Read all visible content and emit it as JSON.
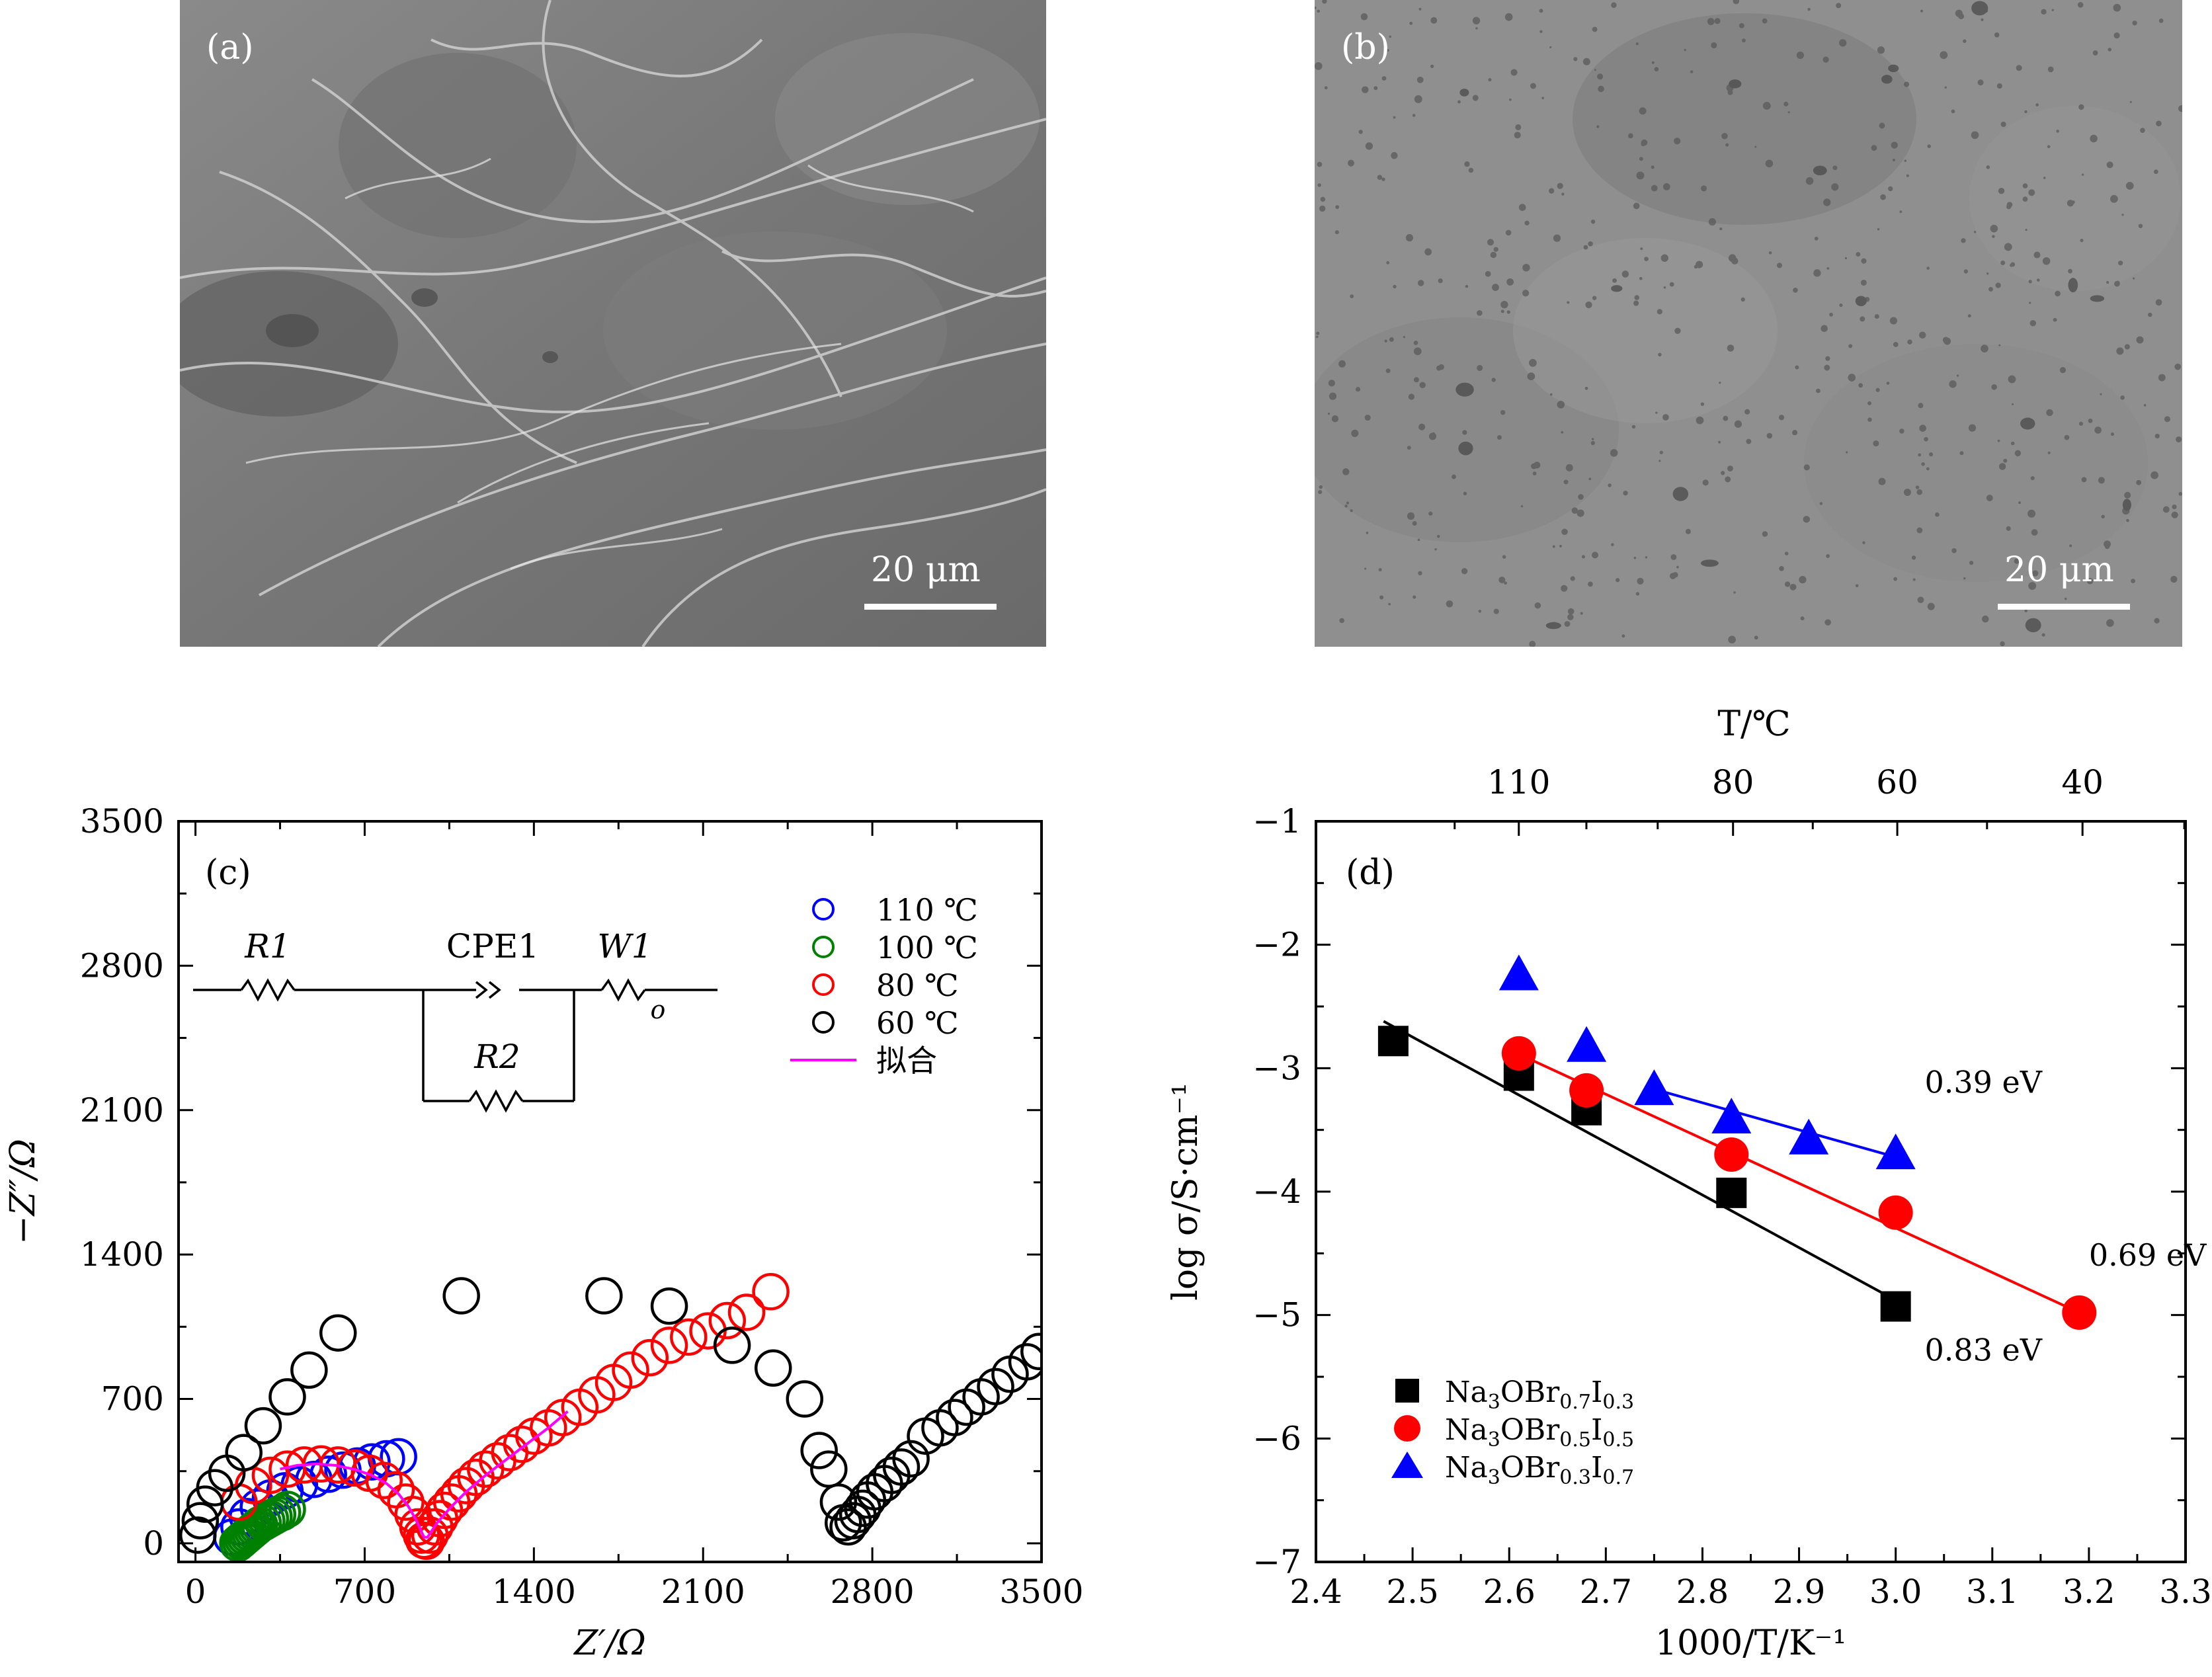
{
  "micrographs": [
    {
      "label": "(a)",
      "scale_text": "20 μm",
      "texture": "wrinkled-fibrous-sem"
    },
    {
      "label": "(b)",
      "scale_text": "20 μm",
      "texture": "dense-smooth-porous-sem"
    }
  ],
  "colors": {
    "blue": "#0000ff",
    "green": "#008000",
    "red": "#ff0000",
    "black": "#000000",
    "magenta": "#ff00ff"
  },
  "chart_data": [
    {
      "type": "scatter",
      "panel_label": "(c)",
      "xlabel": "Z′/Ω",
      "ylabel": "−Z″/Ω",
      "xlim": [
        -70,
        3500
      ],
      "ylim": [
        -90,
        3500
      ],
      "xticks": [
        0,
        700,
        1400,
        2100,
        2800,
        3500
      ],
      "yticks": [
        0,
        700,
        1400,
        2100,
        2800,
        3500
      ],
      "circuit": {
        "r1": "R1",
        "cpe1": "CPE1",
        "w1": "W1",
        "w1_sub": "o",
        "r2": "R2"
      },
      "legend": [
        "110 ℃",
        "100 ℃",
        "80 ℃",
        "60 ℃",
        "拟合"
      ],
      "series": [
        {
          "name": "110 ℃",
          "color": "#0000ff",
          "x": [
            150,
            180,
            215,
            260,
            310,
            370,
            430,
            490,
            550,
            610,
            670,
            730,
            790,
            840
          ],
          "y": [
            30,
            80,
            130,
            175,
            220,
            255,
            285,
            310,
            335,
            355,
            375,
            395,
            410,
            420
          ]
        },
        {
          "name": "100 ℃",
          "color": "#008000",
          "x": [
            175,
            185,
            195,
            205,
            215,
            225,
            235,
            245,
            255,
            265,
            280,
            295,
            310,
            325,
            340,
            360,
            380
          ],
          "y": [
            0,
            10,
            20,
            30,
            40,
            50,
            60,
            70,
            80,
            90,
            100,
            110,
            120,
            130,
            140,
            150,
            165
          ]
        },
        {
          "name": "80 ℃",
          "color": "#ff0000",
          "x": [
            180,
            240,
            310,
            380,
            450,
            520,
            590,
            660,
            720,
            780,
            830,
            870,
            900,
            920,
            935,
            945,
            955,
            970,
            990,
            1010,
            1030,
            1060,
            1090,
            1120,
            1160,
            1200,
            1250,
            1300,
            1350,
            1400,
            1460,
            1520,
            1590,
            1660,
            1730,
            1800,
            1880,
            1960,
            2040,
            2120,
            2200,
            2280,
            2380
          ],
          "y": [
            200,
            280,
            330,
            360,
            380,
            385,
            380,
            365,
            340,
            305,
            260,
            200,
            140,
            80,
            40,
            15,
            10,
            40,
            80,
            120,
            160,
            200,
            240,
            280,
            320,
            360,
            400,
            440,
            480,
            520,
            560,
            610,
            660,
            720,
            780,
            840,
            900,
            960,
            1000,
            1030,
            1080,
            1120,
            1220
          ]
        },
        {
          "name": "60 ℃",
          "color": "#000000",
          "x": [
            10,
            20,
            40,
            80,
            130,
            200,
            280,
            380,
            470,
            590,
            1100,
            1690,
            1960,
            2220,
            2390,
            2520,
            2580,
            2620,
            2660,
            2680,
            2700,
            2720,
            2740,
            2760,
            2780,
            2810,
            2850,
            2880,
            2920,
            2960,
            3020,
            3080,
            3140,
            3190,
            3250,
            3310,
            3370,
            3440,
            3490
          ],
          "y": [
            40,
            110,
            190,
            270,
            340,
            440,
            570,
            710,
            840,
            1020,
            1200,
            1200,
            1150,
            960,
            850,
            700,
            450,
            360,
            200,
            100,
            80,
            110,
            140,
            170,
            210,
            250,
            290,
            330,
            370,
            410,
            520,
            560,
            610,
            660,
            710,
            760,
            820,
            880,
            930
          ]
        }
      ],
      "fit_color": "#ff00ff",
      "fit_curve": {
        "x": [
          350,
          420,
          500,
          580,
          660,
          730,
          790,
          840,
          880,
          910,
          930,
          945,
          960,
          1000,
          1060,
          1120,
          1200,
          1290,
          1380,
          1460,
          1540
        ],
        "y": [
          360,
          378,
          385,
          378,
          358,
          330,
          290,
          240,
          180,
          120,
          70,
          30,
          30,
          100,
          180,
          250,
          330,
          410,
          490,
          560,
          640
        ]
      }
    },
    {
      "type": "scatter",
      "panel_label": "(d)",
      "xlabel": "1000/T/K⁻¹",
      "ylabel": "log σ/S·cm⁻¹",
      "top_xlabel": "T/℃",
      "xlim": [
        2.4,
        3.3
      ],
      "ylim": [
        -7,
        -1
      ],
      "xticks": [
        2.4,
        2.5,
        2.6,
        2.7,
        2.8,
        2.9,
        3.0,
        3.1,
        3.2,
        3.3
      ],
      "yticks": [
        -1,
        -2,
        -3,
        -4,
        -5,
        -6,
        -7
      ],
      "top_ticks": [
        110,
        80,
        60,
        40
      ],
      "series": [
        {
          "name": "Na3OBr0.7I0.3",
          "name_main": "Na",
          "name_parts": [
            "3",
            "OBr",
            "0.7",
            "I",
            "0.3"
          ],
          "color": "#000000",
          "marker": "square",
          "x": [
            2.48,
            2.61,
            2.68,
            2.83,
            3.0
          ],
          "y": [
            -2.78,
            -3.06,
            -3.34,
            -4.01,
            -4.93
          ],
          "fit": {
            "x": [
              2.47,
              3.0
            ],
            "y": [
              -2.62,
              -4.88
            ]
          },
          "annotation": "0.83 eV",
          "ann_pos": [
            3.03,
            -5.37
          ]
        },
        {
          "name": "Na3OBr0.5I0.5",
          "name_main": "Na",
          "name_parts": [
            "3",
            "OBr",
            "0.5",
            "I",
            "0.5"
          ],
          "color": "#ff0000",
          "marker": "circle",
          "x": [
            2.61,
            2.68,
            2.83,
            3.0,
            3.19
          ],
          "y": [
            -2.88,
            -3.18,
            -3.7,
            -4.17,
            -4.98
          ],
          "fit": {
            "x": [
              2.6,
              3.19
            ],
            "y": [
              -2.85,
              -4.98
            ]
          },
          "annotation": "0.69 eV",
          "ann_pos": [
            3.2,
            -4.6
          ]
        },
        {
          "name": "Na3OBr0.3I0.7",
          "name_main": "Na",
          "name_parts": [
            "3",
            "OBr",
            "0.3",
            "I",
            "0.7"
          ],
          "color": "#0000ff",
          "marker": "triangle",
          "x": [
            2.61,
            2.68,
            2.75,
            2.83,
            2.91,
            3.0
          ],
          "y": [
            -2.24,
            -2.82,
            -3.17,
            -3.4,
            -3.57,
            -3.69
          ],
          "fit": {
            "x": [
              2.75,
              3.0
            ],
            "y": [
              -3.17,
              -3.72
            ]
          },
          "annotation": "0.39 eV",
          "ann_pos": [
            3.03,
            -3.2
          ]
        }
      ]
    }
  ]
}
